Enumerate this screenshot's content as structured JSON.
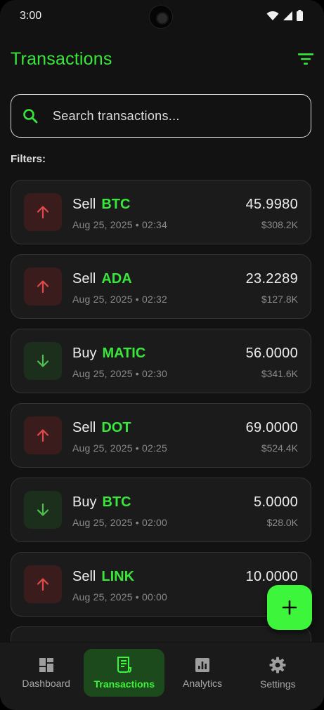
{
  "status_bar": {
    "time": "3:00",
    "icons": [
      "wifi-icon",
      "signal-icon",
      "battery-icon"
    ]
  },
  "header": {
    "title": "Transactions",
    "filter_icon": "filter-icon"
  },
  "search": {
    "placeholder": "Search transactions...",
    "value": ""
  },
  "filters": {
    "label": "Filters:"
  },
  "transactions": [
    {
      "type": "Sell",
      "symbol": "BTC",
      "date": "Aug 25, 2025 • 02:34",
      "amount": "45.9980",
      "value": "$308.2K",
      "direction": "sell"
    },
    {
      "type": "Sell",
      "symbol": "ADA",
      "date": "Aug 25, 2025 • 02:32",
      "amount": "23.2289",
      "value": "$127.8K",
      "direction": "sell"
    },
    {
      "type": "Buy",
      "symbol": "MATIC",
      "date": "Aug 25, 2025 • 02:30",
      "amount": "56.0000",
      "value": "$341.6K",
      "direction": "buy"
    },
    {
      "type": "Sell",
      "symbol": "DOT",
      "date": "Aug 25, 2025 • 02:25",
      "amount": "69.0000",
      "value": "$524.4K",
      "direction": "sell"
    },
    {
      "type": "Buy",
      "symbol": "BTC",
      "date": "Aug 25, 2025 • 02:00",
      "amount": "5.0000",
      "value": "$28.0K",
      "direction": "buy"
    },
    {
      "type": "Sell",
      "symbol": "LINK",
      "date": "Aug 25, 2025 • 00:00",
      "amount": "10.0000",
      "value": "",
      "direction": "sell"
    }
  ],
  "fab": {
    "icon": "plus-icon"
  },
  "nav": {
    "items": [
      {
        "label": "Dashboard",
        "icon": "dashboard-icon",
        "active": false
      },
      {
        "label": "Transactions",
        "icon": "receipt-icon",
        "active": true
      },
      {
        "label": "Analytics",
        "icon": "analytics-icon",
        "active": false
      },
      {
        "label": "Settings",
        "icon": "gear-icon",
        "active": false
      }
    ]
  },
  "colors": {
    "accent": "#39e63a",
    "sell_arrow": "#e24a4a",
    "buy_arrow": "#4fbf4f",
    "background": "#121212",
    "card": "#1b1b1b"
  }
}
